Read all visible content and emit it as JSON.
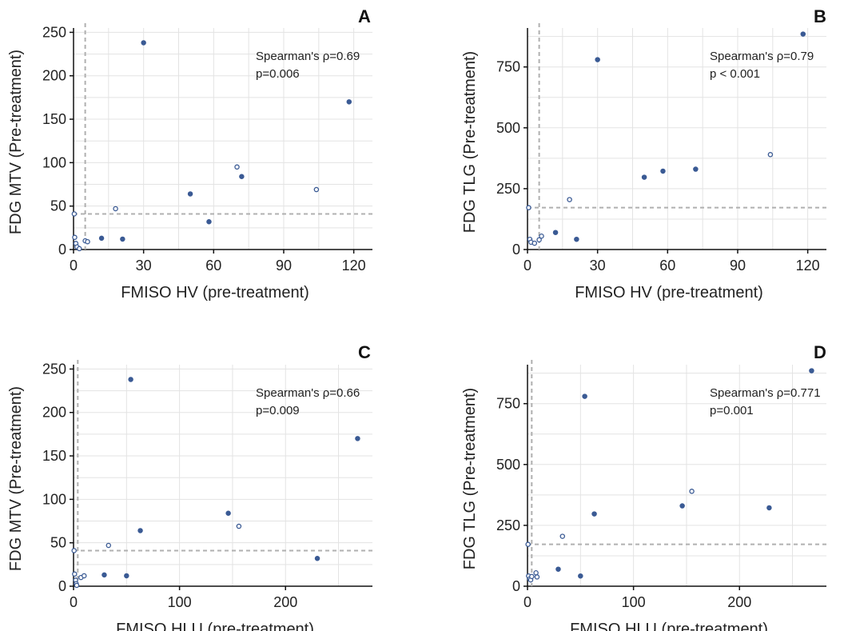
{
  "chart_data": [
    {
      "panel": "A",
      "type": "scatter",
      "xlabel": "FMISO HV (pre-treatment)",
      "ylabel": "FDG MTV (Pre-treatment)",
      "xlim": [
        0,
        128
      ],
      "ylim": [
        0,
        255
      ],
      "xticks": [
        0,
        30,
        60,
        90,
        120
      ],
      "yticks": [
        0,
        50,
        100,
        150,
        200,
        250
      ],
      "ref_x": 5,
      "ref_y": 41,
      "annotation": [
        "Spearman's ρ=0.69",
        "p=0.006"
      ],
      "grid": true,
      "points": [
        {
          "x": 0.3,
          "y": 41,
          "filled": false
        },
        {
          "x": 0.5,
          "y": 14,
          "filled": false
        },
        {
          "x": 1,
          "y": 7,
          "filled": false
        },
        {
          "x": 1.5,
          "y": 3,
          "filled": false
        },
        {
          "x": 2.5,
          "y": 1,
          "filled": false
        },
        {
          "x": 5,
          "y": 10,
          "filled": false
        },
        {
          "x": 6,
          "y": 9,
          "filled": false
        },
        {
          "x": 12,
          "y": 13,
          "filled": true
        },
        {
          "x": 18,
          "y": 47,
          "filled": false
        },
        {
          "x": 21,
          "y": 12,
          "filled": true
        },
        {
          "x": 30,
          "y": 238,
          "filled": true
        },
        {
          "x": 50,
          "y": 64,
          "filled": true
        },
        {
          "x": 58,
          "y": 32,
          "filled": true
        },
        {
          "x": 70,
          "y": 95,
          "filled": false
        },
        {
          "x": 72,
          "y": 84,
          "filled": true
        },
        {
          "x": 104,
          "y": 69,
          "filled": false
        },
        {
          "x": 118,
          "y": 170,
          "filled": true
        }
      ]
    },
    {
      "panel": "B",
      "type": "scatter",
      "xlabel": "FMISO HV (pre-treatment)",
      "ylabel": "FDG TLG (Pre-treatment)",
      "xlim": [
        0,
        128
      ],
      "ylim": [
        0,
        910
      ],
      "xticks": [
        0,
        30,
        60,
        90,
        120
      ],
      "yticks": [
        0,
        250,
        500,
        750
      ],
      "ref_x": 5,
      "ref_y": 172,
      "annotation": [
        "Spearman's ρ=0.79",
        "p < 0.001"
      ],
      "grid": true,
      "points": [
        {
          "x": 0.5,
          "y": 172,
          "filled": false
        },
        {
          "x": 1,
          "y": 42,
          "filled": false
        },
        {
          "x": 1.5,
          "y": 30,
          "filled": false
        },
        {
          "x": 3,
          "y": 26,
          "filled": false
        },
        {
          "x": 5,
          "y": 40,
          "filled": false
        },
        {
          "x": 6,
          "y": 55,
          "filled": false
        },
        {
          "x": 12,
          "y": 70,
          "filled": true
        },
        {
          "x": 18,
          "y": 205,
          "filled": false
        },
        {
          "x": 21,
          "y": 42,
          "filled": true
        },
        {
          "x": 30,
          "y": 780,
          "filled": true
        },
        {
          "x": 50,
          "y": 297,
          "filled": true
        },
        {
          "x": 58,
          "y": 322,
          "filled": true
        },
        {
          "x": 72,
          "y": 330,
          "filled": true
        },
        {
          "x": 104,
          "y": 390,
          "filled": false
        },
        {
          "x": 118,
          "y": 885,
          "filled": true
        }
      ]
    },
    {
      "panel": "C",
      "type": "scatter",
      "xlabel": "FMISO HLU (pre-treatment)",
      "ylabel": "FDG MTV (Pre-treatment)",
      "xlim": [
        0,
        282
      ],
      "ylim": [
        0,
        255
      ],
      "xticks": [
        0,
        100,
        200
      ],
      "yticks": [
        0,
        50,
        100,
        150,
        200,
        250
      ],
      "ref_x": 4,
      "ref_y": 41,
      "annotation": [
        "Spearman's ρ=0.66",
        "p=0.009"
      ],
      "grid": true,
      "points": [
        {
          "x": 0.5,
          "y": 41,
          "filled": false
        },
        {
          "x": 1,
          "y": 14,
          "filled": false
        },
        {
          "x": 2,
          "y": 7,
          "filled": false
        },
        {
          "x": 2.5,
          "y": 3,
          "filled": false
        },
        {
          "x": 3,
          "y": 1,
          "filled": false
        },
        {
          "x": 7,
          "y": 10,
          "filled": false
        },
        {
          "x": 10,
          "y": 12,
          "filled": false
        },
        {
          "x": 29,
          "y": 13,
          "filled": true
        },
        {
          "x": 33,
          "y": 47,
          "filled": false
        },
        {
          "x": 50,
          "y": 12,
          "filled": true
        },
        {
          "x": 54,
          "y": 238,
          "filled": true
        },
        {
          "x": 63,
          "y": 64,
          "filled": true
        },
        {
          "x": 146,
          "y": 84,
          "filled": true
        },
        {
          "x": 156,
          "y": 69,
          "filled": false
        },
        {
          "x": 230,
          "y": 32,
          "filled": true
        },
        {
          "x": 268,
          "y": 170,
          "filled": true
        }
      ]
    },
    {
      "panel": "D",
      "type": "scatter",
      "xlabel": "FMISO HLU (pre-treatment)",
      "ylabel": "FDG TLG (Pre-treatment)",
      "xlim": [
        0,
        282
      ],
      "ylim": [
        0,
        910
      ],
      "xticks": [
        0,
        100,
        200
      ],
      "yticks": [
        0,
        250,
        500,
        750
      ],
      "ref_x": 4,
      "ref_y": 172,
      "annotation": [
        "Spearman's ρ=0.771",
        "p=0.001"
      ],
      "grid": true,
      "points": [
        {
          "x": 0.5,
          "y": 172,
          "filled": false
        },
        {
          "x": 1,
          "y": 42,
          "filled": false
        },
        {
          "x": 2,
          "y": 30,
          "filled": false
        },
        {
          "x": 3,
          "y": 26,
          "filled": false
        },
        {
          "x": 4,
          "y": 40,
          "filled": false
        },
        {
          "x": 8,
          "y": 55,
          "filled": false
        },
        {
          "x": 9,
          "y": 38,
          "filled": false
        },
        {
          "x": 29,
          "y": 70,
          "filled": true
        },
        {
          "x": 33,
          "y": 205,
          "filled": false
        },
        {
          "x": 50,
          "y": 42,
          "filled": true
        },
        {
          "x": 54,
          "y": 780,
          "filled": true
        },
        {
          "x": 63,
          "y": 297,
          "filled": true
        },
        {
          "x": 146,
          "y": 330,
          "filled": true
        },
        {
          "x": 155,
          "y": 390,
          "filled": false
        },
        {
          "x": 228,
          "y": 322,
          "filled": true
        },
        {
          "x": 268,
          "y": 885,
          "filled": true
        }
      ]
    }
  ],
  "colors": {
    "point": "#3a5a94",
    "reference_line": "#b0b0b0",
    "grid": "#e3e3e3",
    "axis": "#111111"
  }
}
